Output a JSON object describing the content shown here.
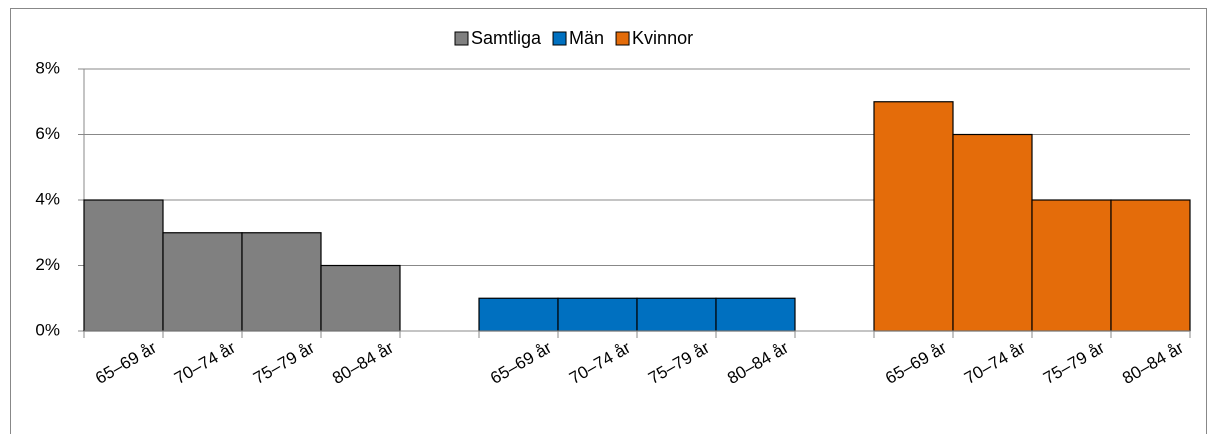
{
  "chart_data": {
    "type": "bar",
    "categories": [
      "65–69 år",
      "70–74 år",
      "75–79 år",
      "80–84 år",
      null,
      "65–69 år",
      "70–74 år",
      "75–79 år",
      "80–84 år",
      null,
      "65–69 år",
      "70–74 år",
      "75–79 år",
      "80–84 år"
    ],
    "series": [
      {
        "name": "Samtliga",
        "color": "#808080",
        "values": [
          4,
          3,
          3,
          2,
          null,
          null,
          null,
          null,
          null,
          null,
          null,
          null,
          null,
          null
        ]
      },
      {
        "name": "Män",
        "color": "#0070c0",
        "values": [
          null,
          null,
          null,
          null,
          null,
          1,
          1,
          1,
          1,
          null,
          null,
          null,
          null,
          null
        ]
      },
      {
        "name": "Kvinnor",
        "color": "#e46c0a",
        "values": [
          null,
          null,
          null,
          null,
          null,
          null,
          null,
          null,
          null,
          null,
          7,
          6,
          4,
          4
        ]
      }
    ],
    "ylim": [
      0,
      8
    ],
    "yticks": [
      {
        "value": 0,
        "label": "0%"
      },
      {
        "value": 2,
        "label": "2%"
      },
      {
        "value": 4,
        "label": "4%"
      },
      {
        "value": 6,
        "label": "6%"
      },
      {
        "value": 8,
        "label": "8%"
      }
    ],
    "grid": true,
    "legend": "top"
  }
}
